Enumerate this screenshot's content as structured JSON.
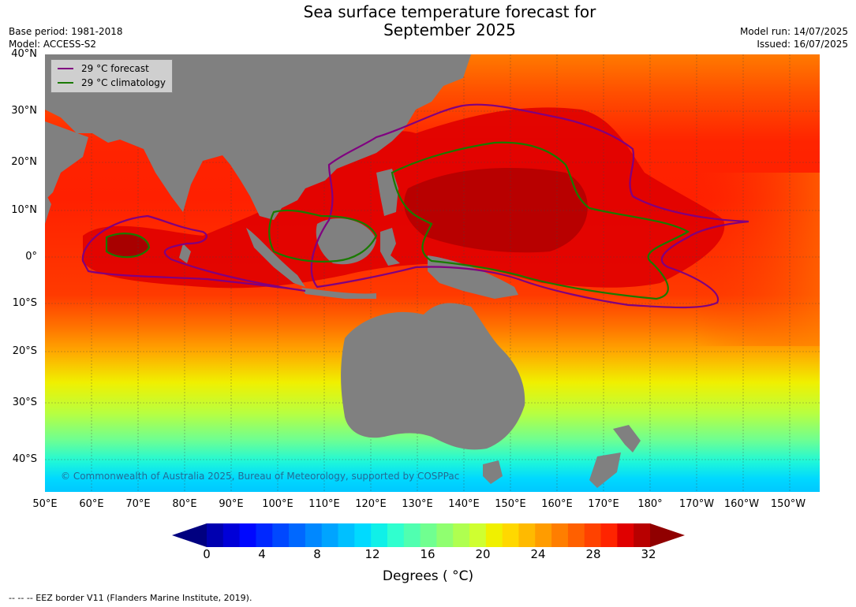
{
  "title_line1": "Sea surface temperature forecast for",
  "title_line2": "September 2025",
  "meta": {
    "base_period": "Base period: 1981-2018",
    "model": "Model: ACCESS-S2",
    "model_run": "Model run: 14/07/2025",
    "issued": "Issued: 16/07/2025"
  },
  "map": {
    "lat_labels": [
      "40°N",
      "30°N",
      "20°N",
      "10°N",
      "0°",
      "10°S",
      "20°S",
      "30°S",
      "40°S"
    ],
    "lon_labels": [
      "50°E",
      "60°E",
      "70°E",
      "80°E",
      "90°E",
      "100°E",
      "110°E",
      "120°E",
      "130°E",
      "140°E",
      "150°E",
      "160°E",
      "170°E",
      "180°",
      "170°W",
      "160°W",
      "150°W"
    ],
    "land_color": "#808080",
    "forecast_color": "#800080",
    "climatology_color": "#1a7a00"
  },
  "legend": {
    "forecast": "29 °C  forecast",
    "climatology": "29 °C  climatology"
  },
  "copyright": "© Commonwealth of Australia 2025, Bureau of Meteorology, supported by COSPPac",
  "colorbar": {
    "ticks": [
      "0",
      "4",
      "8",
      "12",
      "16",
      "20",
      "24",
      "28",
      "32"
    ],
    "label": "Degrees ( °C)",
    "colors": [
      "#000080",
      "#0000b0",
      "#0000d8",
      "#0008ff",
      "#0028ff",
      "#0048ff",
      "#0068ff",
      "#0088ff",
      "#00a4ff",
      "#00c0ff",
      "#00daff",
      "#10f0e8",
      "#30ffcf",
      "#50ffb0",
      "#70ff90",
      "#90ff70",
      "#afff50",
      "#cfff30",
      "#f0f000",
      "#ffd800",
      "#ffba00",
      "#ff9c00",
      "#ff7e00",
      "#ff6000",
      "#ff4200",
      "#ff2400",
      "#e00000",
      "#b80000",
      "#900000"
    ]
  },
  "eez_note": "--  --  -- EEZ border V11 (Flanders Marine Institute, 2019)."
}
